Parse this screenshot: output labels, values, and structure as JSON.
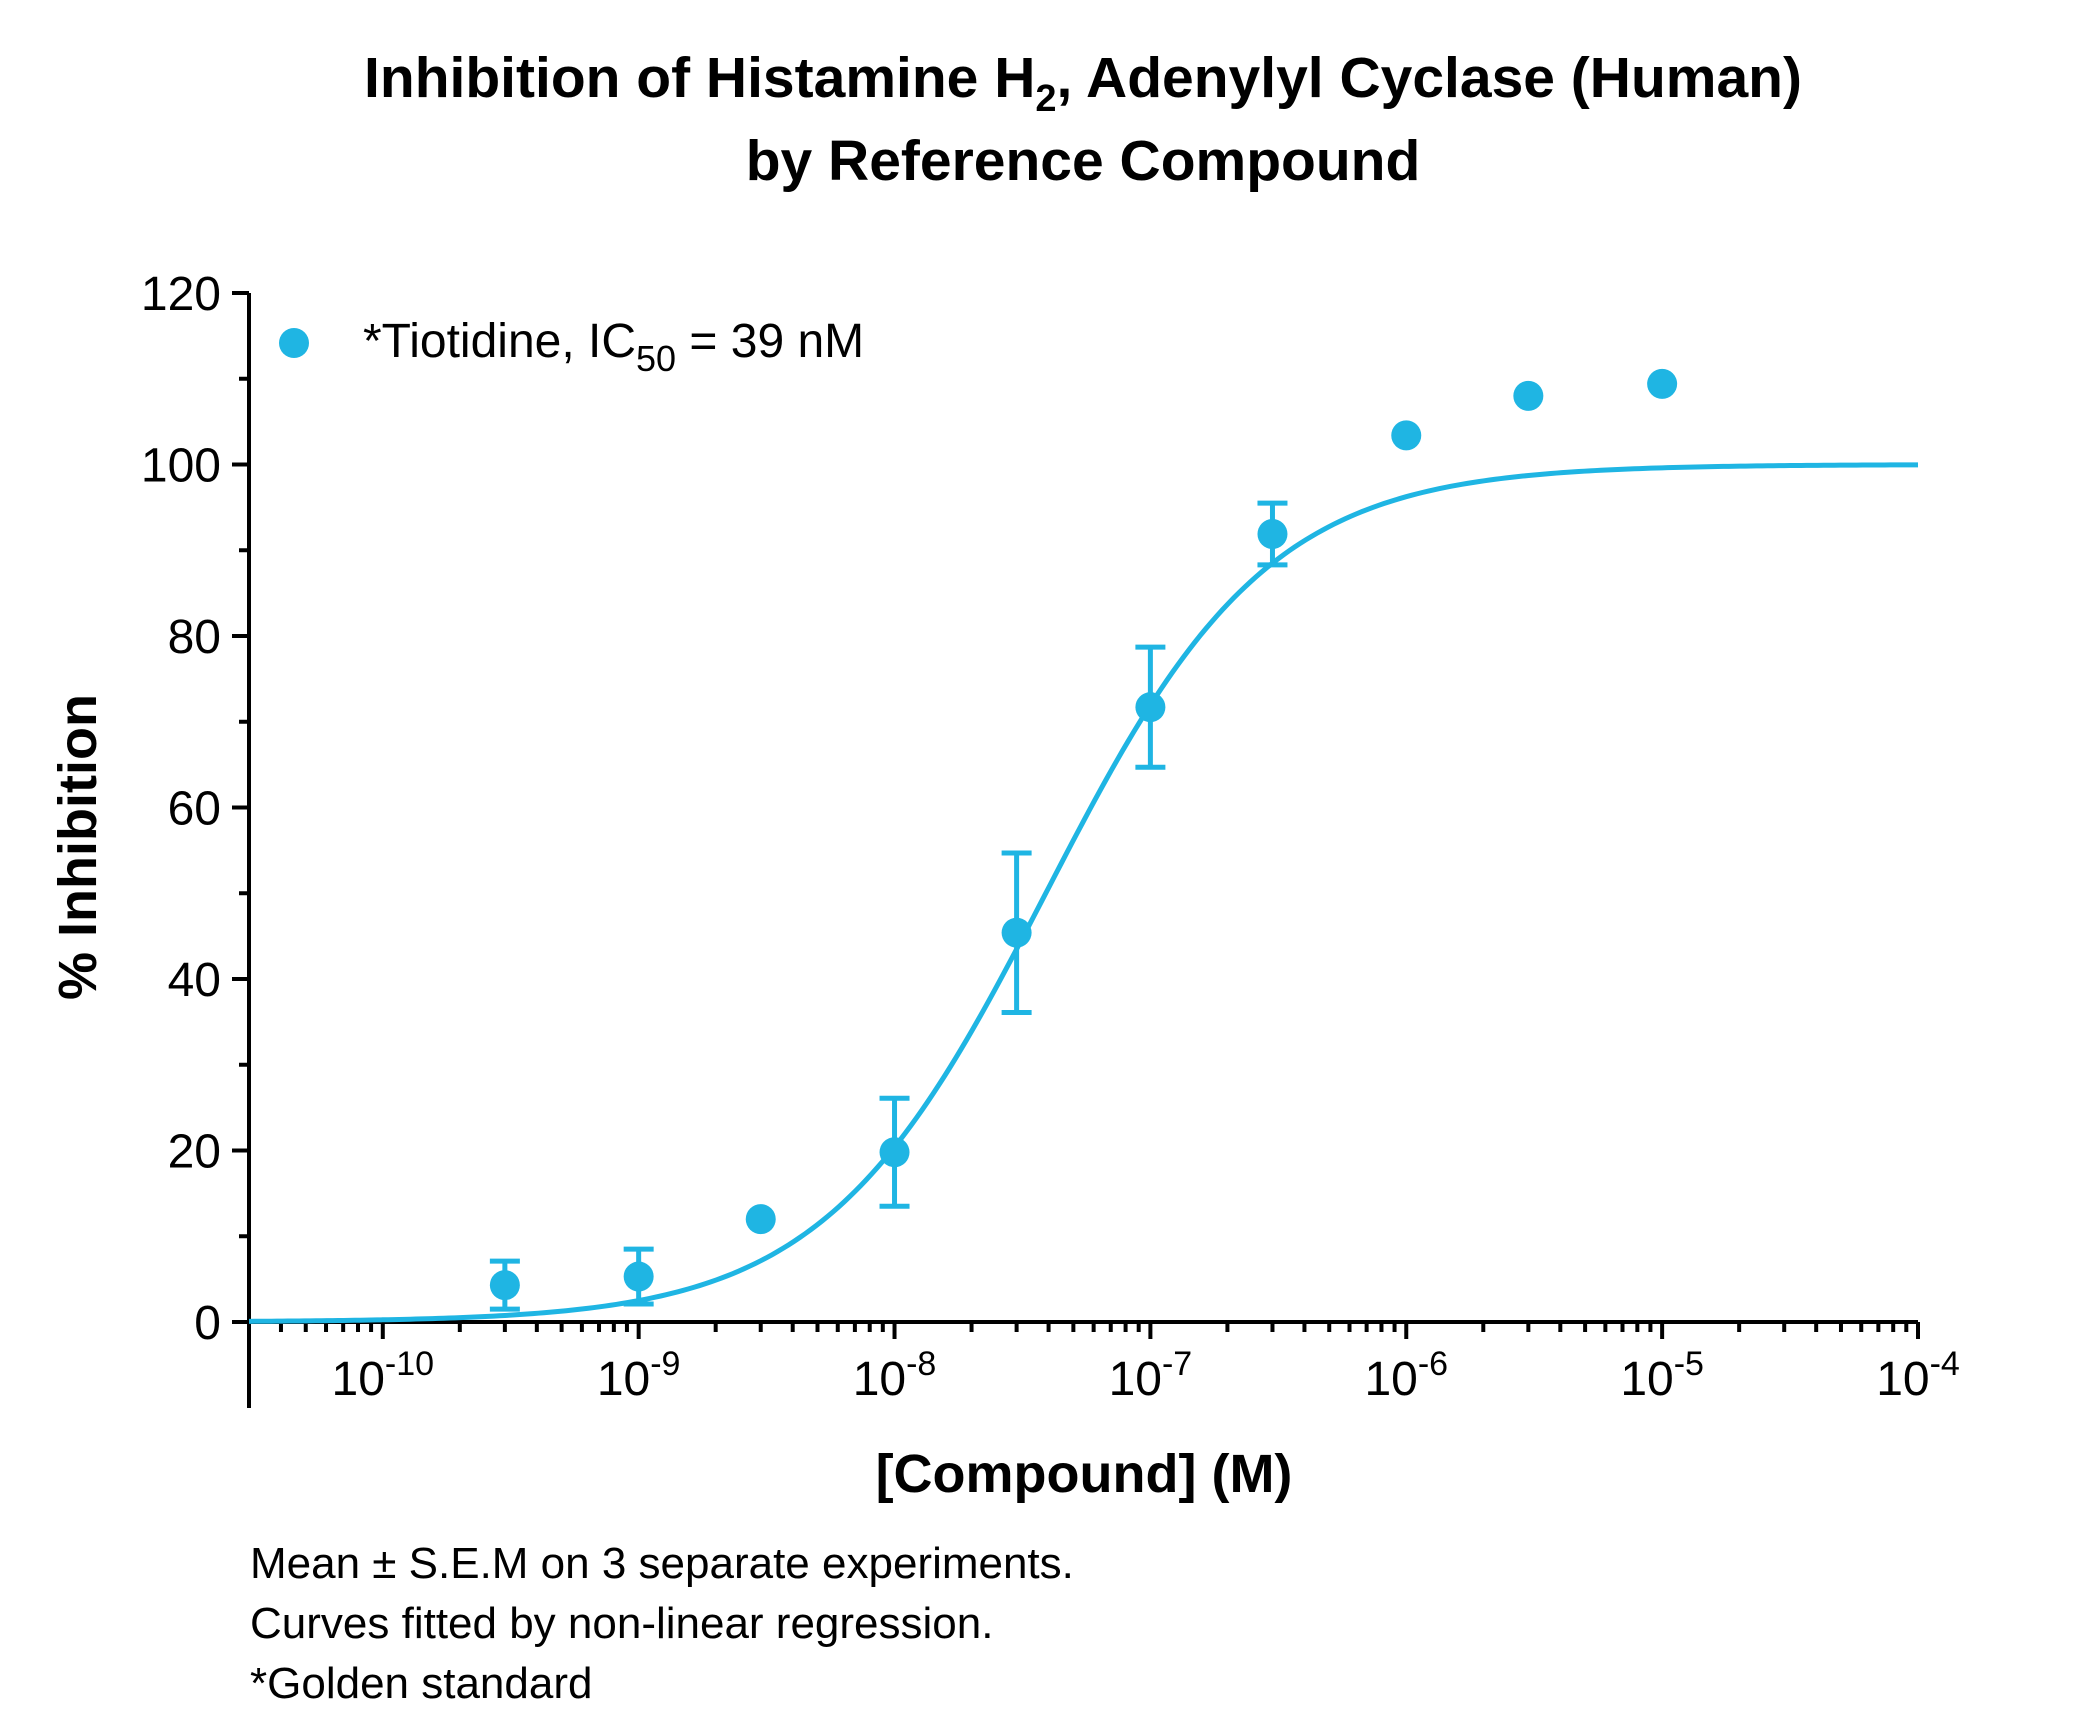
{
  "chart_data": {
    "type": "scatter",
    "title_lines": [
      {
        "text": "Inhibition of Histamine H",
        "sub": "2",
        "tail": ", Adenylyl Cyclase (Human)"
      },
      {
        "text": "by Reference Compound"
      }
    ],
    "xlabel": "[Compound] (M)",
    "ylabel": "% Inhibition",
    "x_scale": "log",
    "xlim": [
      "3e-11",
      "1e-4"
    ],
    "ylim": [
      0,
      120
    ],
    "y_ticks": [
      0,
      20,
      40,
      60,
      80,
      100,
      120
    ],
    "x_ticks": [
      {
        "value": "1e-10",
        "base": "10",
        "exp": "-10"
      },
      {
        "value": "1e-9",
        "base": "10",
        "exp": "-9"
      },
      {
        "value": "1e-8",
        "base": "10",
        "exp": "-8"
      },
      {
        "value": "1e-7",
        "base": "10",
        "exp": "-7"
      },
      {
        "value": "1e-6",
        "base": "10",
        "exp": "-6"
      },
      {
        "value": "1e-5",
        "base": "10",
        "exp": "-5"
      },
      {
        "value": "1e-4",
        "base": "10",
        "exp": "-4"
      }
    ],
    "grid": false,
    "legend_position": "top-left",
    "series": [
      {
        "name": "*Tiotidine, IC",
        "name_sub": "50",
        "name_tail": " = 39 nM",
        "color": "#1fb5e3",
        "points": [
          {
            "x": "3e-10",
            "y": 4.3,
            "err": 2.8
          },
          {
            "x": "1e-9",
            "y": 5.3,
            "err": 3.2
          },
          {
            "x": "3e-9",
            "y": 12.0,
            "err": 0
          },
          {
            "x": "1e-8",
            "y": 19.8,
            "err": 6.3
          },
          {
            "x": "3e-8",
            "y": 45.4,
            "err": 9.3
          },
          {
            "x": "1e-7",
            "y": 71.7,
            "err": 7.0
          },
          {
            "x": "3e-7",
            "y": 91.9,
            "err": 3.6
          },
          {
            "x": "1e-6",
            "y": 103.4,
            "err": 0
          },
          {
            "x": "3e-6",
            "y": 108.0,
            "err": 0
          },
          {
            "x": "1e-5",
            "y": 109.4,
            "err": 0
          }
        ],
        "fit": {
          "model": "sigmoidal dose-response",
          "bottom": 0,
          "top": 100,
          "ic50": "3.9e-8",
          "hill": 1.0
        }
      }
    ],
    "footnotes": [
      "Mean ± S.E.M on 3 separate experiments.",
      "Curves fitted by non-linear regression.",
      "*Golden standard"
    ]
  }
}
